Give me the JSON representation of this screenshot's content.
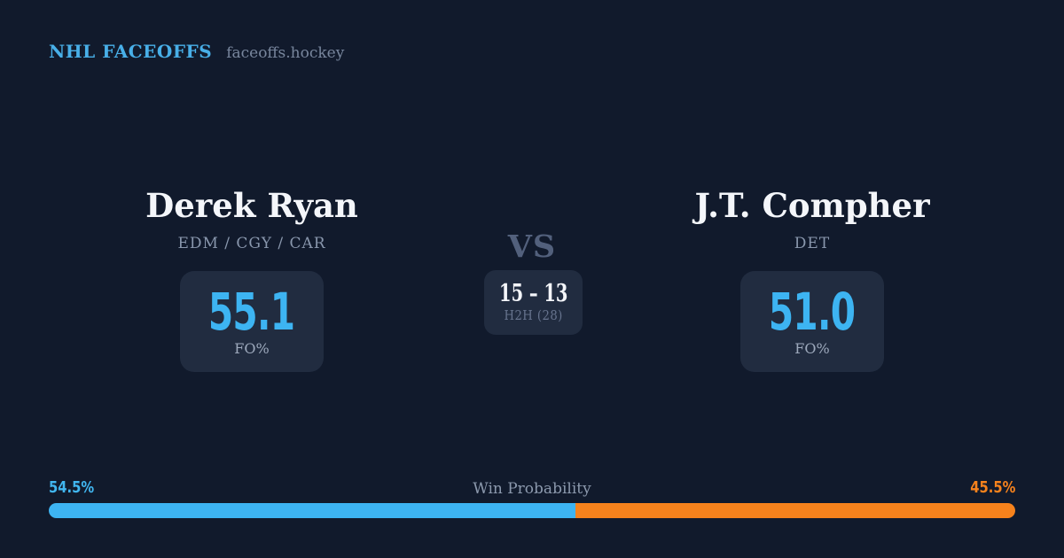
{
  "theme": {
    "background": "#111a2c",
    "card_bg": "#212c40",
    "accent_blue": "#3db4f2",
    "accent_orange": "#f6821c",
    "text_white": "#f4f6fa",
    "text_muted": "#8997ad",
    "text_dim": "#52607c"
  },
  "header": {
    "brand": "NHL FACEOFFS",
    "site": "faceoffs.hockey"
  },
  "players": {
    "left": {
      "name": "Derek Ryan",
      "teams": "EDM / CGY / CAR",
      "stat_value": "55.1",
      "stat_label": "FO%"
    },
    "right": {
      "name": "J.T. Compher",
      "teams": "DET",
      "stat_value": "51.0",
      "stat_label": "FO%"
    }
  },
  "center": {
    "vs_label": "VS",
    "h2h_score": "15 – 13",
    "h2h_label": "H2H (28)"
  },
  "win_probability": {
    "title": "Win Probability",
    "left_label": "54.5%",
    "right_label": "45.5%",
    "left_pct": 54.5,
    "right_pct": 45.5
  },
  "chart_data": {
    "type": "bar",
    "title": "Win Probability",
    "layout": "single horizontal stacked bar, legend as end labels",
    "categories": [
      "Derek Ryan",
      "J.T. Compher"
    ],
    "values": [
      54.5,
      45.5
    ],
    "unit": "%",
    "colors": [
      "#3db4f2",
      "#f6821c"
    ],
    "xlim": [
      0,
      100
    ],
    "related_stats": {
      "faceoff_pct": {
        "left": 55.1,
        "right": 51.0
      },
      "head_to_head": {
        "left_wins": 15,
        "right_wins": 13,
        "total": 28
      }
    }
  }
}
